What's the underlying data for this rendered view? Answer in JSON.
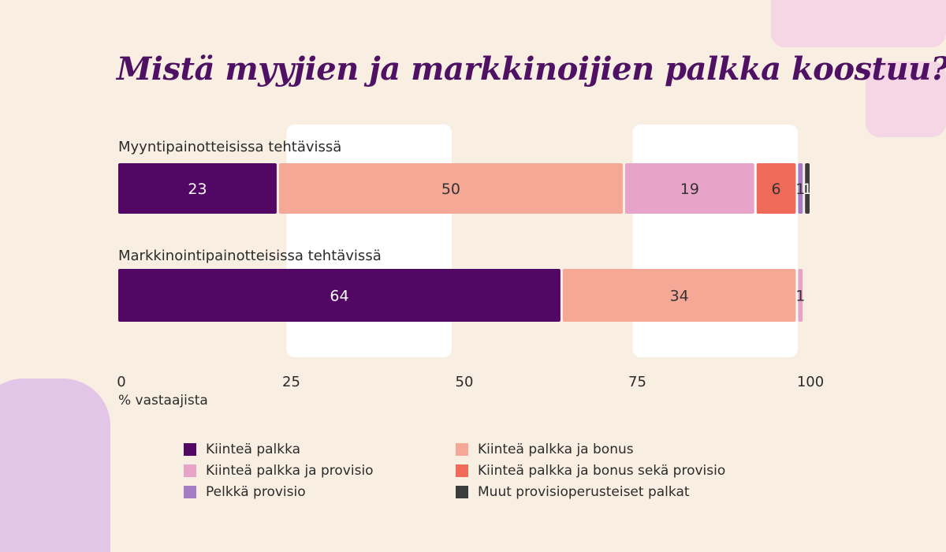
{
  "title": "Mistä myyjien ja markkinoijien palkka koostuu?",
  "chart_data": {
    "type": "bar",
    "orientation": "horizontal",
    "stacked": true,
    "title": "Mistä myyjien ja markkinoijien palkka koostuu?",
    "categories": [
      "Myyntipainotteisissa tehtävissä",
      "Markkinointipainotteisissa tehtävissä"
    ],
    "series": [
      {
        "name": "Kiinteä palkka",
        "color": "#530764",
        "values": [
          23,
          64
        ]
      },
      {
        "name": "Kiinteä palkka ja bonus",
        "color": "#f5a896",
        "values": [
          50,
          34
        ]
      },
      {
        "name": "Kiinteä palkka ja provisio",
        "color": "#e8a3c9",
        "values": [
          19,
          1
        ]
      },
      {
        "name": "Kiinteä palkka ja bonus sekä provisio",
        "color": "#ef6a58",
        "values": [
          6,
          0
        ]
      },
      {
        "name": "Pelkkä provisio",
        "color": "#a57cc4",
        "values": [
          1,
          0
        ]
      },
      {
        "name": "Muut provisioperusteiset palkat",
        "color": "#3c3c3c",
        "values": [
          1,
          0
        ]
      }
    ],
    "xlabel": "% vastaajista",
    "xlim": [
      0,
      100
    ],
    "xticks": [
      0,
      25,
      50,
      75,
      100
    ],
    "legend_position": "bottom"
  }
}
